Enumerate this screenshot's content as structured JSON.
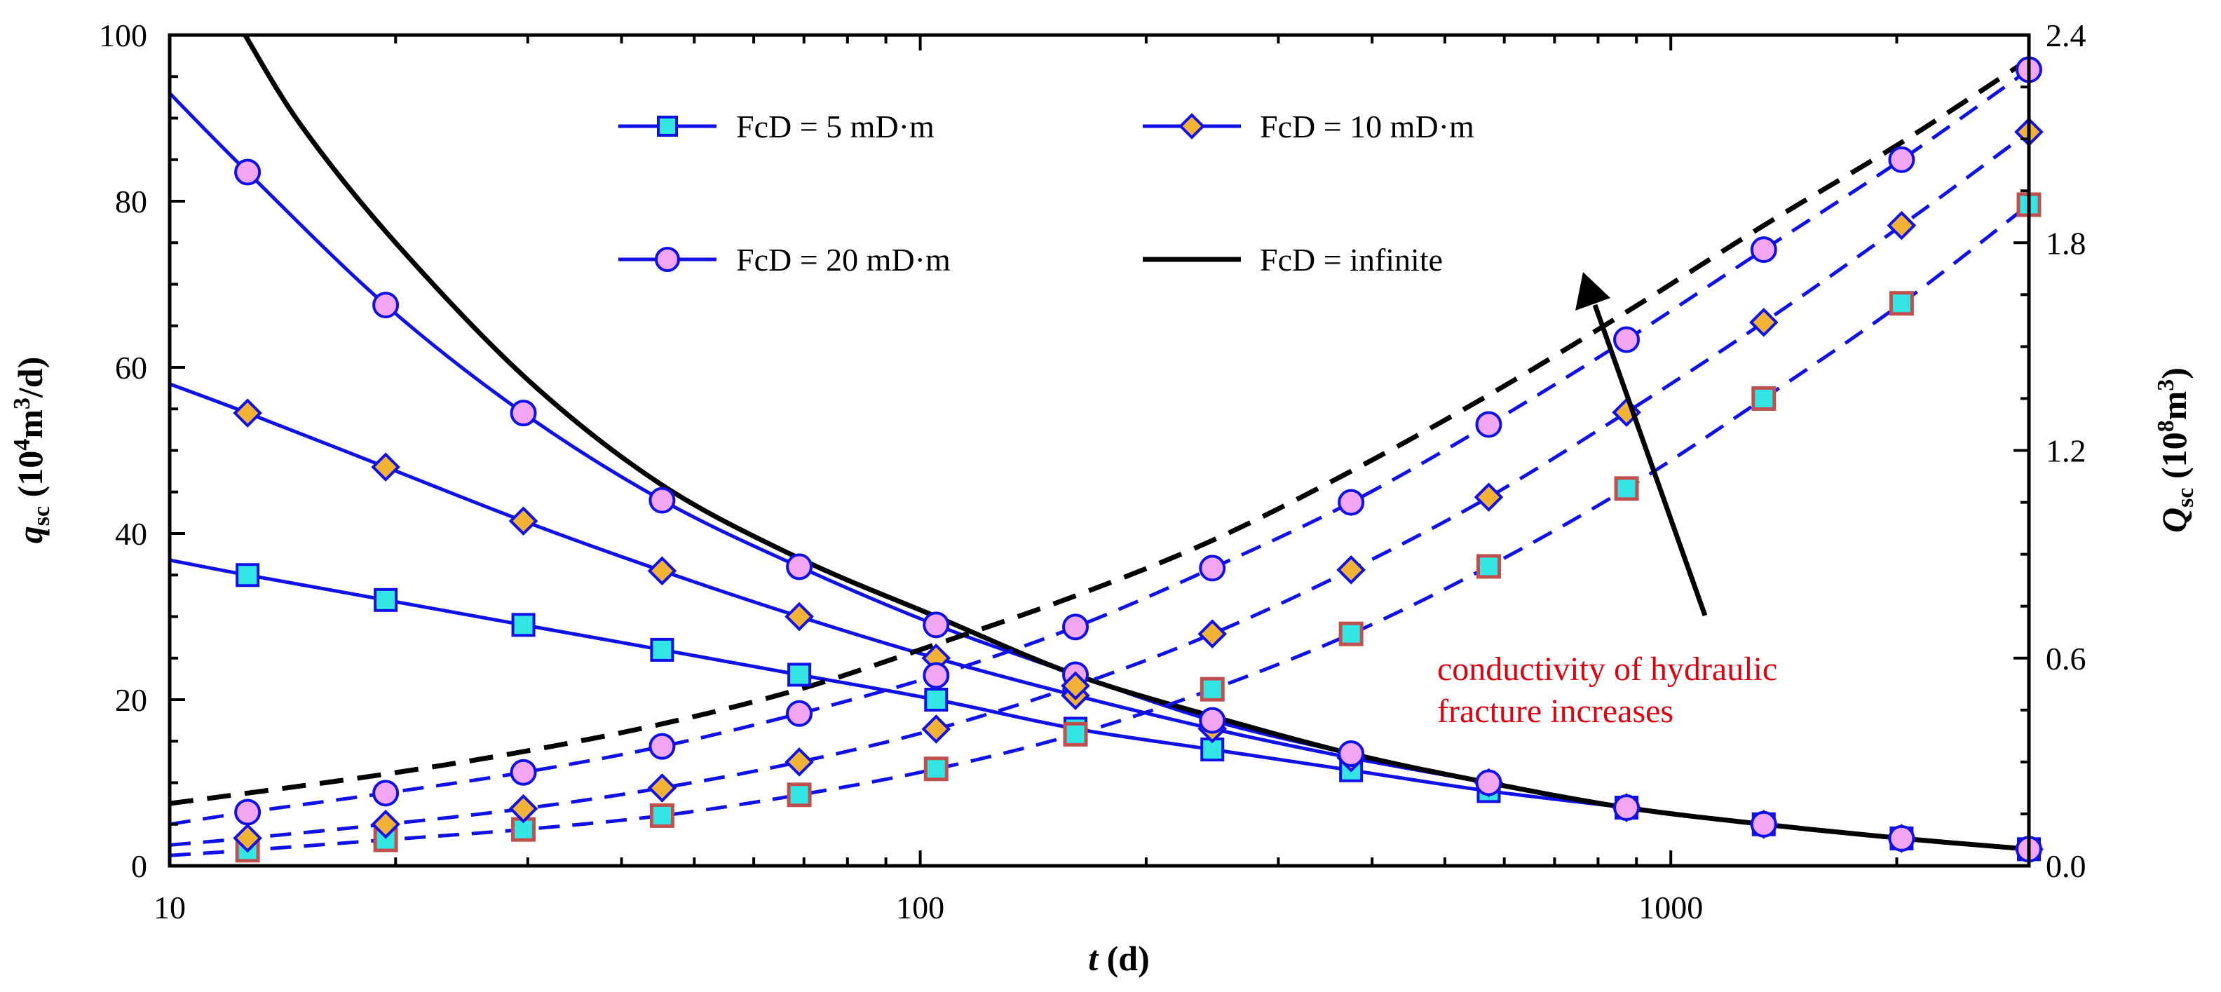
{
  "chart_data": {
    "type": "line",
    "x_scale": "log",
    "xlim": [
      10,
      3000
    ],
    "ylim_left": [
      0,
      100
    ],
    "ylim_right": [
      0,
      2.4
    ],
    "x_ticks": [
      "10",
      "100",
      "1000"
    ],
    "y_left_ticks": [
      "0",
      "20",
      "40",
      "60",
      "80",
      "100"
    ],
    "y_right_ticks": [
      "0.0",
      "0.6",
      "1.2",
      "1.8",
      "2.4"
    ],
    "xlabel": {
      "main": "t",
      "rest": " (d)"
    },
    "ylabel_left": {
      "main": "q",
      "sub": "sc",
      "pre": " (10",
      "sup": "4",
      "mid": "m",
      "sup2": "3",
      "post": "/d)"
    },
    "ylabel_right": {
      "main": "Q",
      "sub": "sc",
      "pre": " (10",
      "sup": "8",
      "mid": "m",
      "sup2": "3",
      "post": ")"
    },
    "grid": false,
    "legend_position": "top-center",
    "colors": {
      "blue": "#1010e8",
      "black": "#000000",
      "square_fill": "#33e6e6",
      "square_edge": "#c0504d",
      "diamond_fill": "#f2b233",
      "circle_fill": "#f2a6f2",
      "annotation": "#e0000f"
    },
    "legend": [
      {
        "label": "FcD = 5 mD·m",
        "marker": "square"
      },
      {
        "label": "FcD = 10 mD·m",
        "marker": "diamond"
      },
      {
        "label": "FcD = 20 mD·m",
        "marker": "circle"
      },
      {
        "label": "FcD = infinite",
        "marker": "none"
      }
    ],
    "marker_x": [
      12.7,
      19.4,
      29.6,
      45.3,
      69,
      105,
      161,
      245,
      375,
      572,
      873,
      1330,
      2030,
      3000
    ],
    "series": [
      {
        "name": "FcD = 5 mD·m",
        "axis": "left",
        "style": "solid",
        "marker": "square",
        "x": [
          10,
          12.7,
          19.4,
          29.6,
          45.3,
          69,
          105,
          161,
          245,
          375,
          572,
          873,
          1330,
          2030,
          3000
        ],
        "y": [
          36.8,
          35.0,
          32.0,
          29.0,
          26.0,
          23.0,
          20.0,
          16.5,
          14.0,
          11.5,
          9.0,
          7.0,
          5.0,
          3.3,
          2.0
        ]
      },
      {
        "name": "FcD = 10 mD·m",
        "axis": "left",
        "style": "solid",
        "marker": "diamond",
        "x": [
          10,
          12.7,
          19.4,
          29.6,
          45.3,
          69,
          105,
          161,
          245,
          375,
          572,
          873,
          1330,
          2030,
          3000
        ],
        "y": [
          58.0,
          54.5,
          48.0,
          41.5,
          35.5,
          30.0,
          25.0,
          20.5,
          16.5,
          13.0,
          10.0,
          7.0,
          5.0,
          3.3,
          2.0
        ]
      },
      {
        "name": "FcD = 20 mD·m",
        "axis": "left",
        "style": "solid",
        "marker": "circle",
        "x": [
          10,
          12.7,
          19.4,
          29.6,
          45.3,
          69,
          105,
          161,
          245,
          375,
          572,
          873,
          1330,
          2030,
          3000
        ],
        "y": [
          93.0,
          83.5,
          67.5,
          54.5,
          44.0,
          36.0,
          29.0,
          23.0,
          17.5,
          13.5,
          10.0,
          7.0,
          5.0,
          3.3,
          2.0
        ]
      },
      {
        "name": "FcD = infinite",
        "axis": "left",
        "style": "solid",
        "marker": "none",
        "x": [
          12.6,
          15,
          20,
          30,
          45,
          69,
          105,
          161,
          245,
          375,
          572,
          873,
          1330,
          2030,
          3000
        ],
        "y": [
          100,
          89,
          75,
          58.5,
          46,
          37,
          30,
          23,
          18,
          13.5,
          10,
          7,
          5,
          3.3,
          2.0
        ]
      },
      {
        "name": "FcD = 5 mD·m",
        "axis": "right",
        "style": "dashed",
        "marker": "square",
        "x": [
          10,
          12.7,
          19.4,
          29.6,
          45.3,
          69,
          105,
          161,
          245,
          375,
          572,
          873,
          1330,
          2030,
          3000
        ],
        "y": [
          0.03,
          0.045,
          0.075,
          0.105,
          0.145,
          0.205,
          0.28,
          0.38,
          0.51,
          0.67,
          0.865,
          1.09,
          1.35,
          1.625,
          1.91
        ]
      },
      {
        "name": "FcD = 10 mD·m",
        "axis": "right",
        "style": "dashed",
        "marker": "diamond",
        "x": [
          10,
          12.7,
          19.4,
          29.6,
          45.3,
          69,
          105,
          161,
          245,
          375,
          572,
          873,
          1330,
          2030,
          3000
        ],
        "y": [
          0.06,
          0.08,
          0.12,
          0.165,
          0.225,
          0.3,
          0.395,
          0.52,
          0.67,
          0.855,
          1.065,
          1.31,
          1.57,
          1.85,
          2.12
        ]
      },
      {
        "name": "FcD = 20 mD·m",
        "axis": "right",
        "style": "dashed",
        "marker": "circle",
        "x": [
          10,
          12.7,
          19.4,
          29.6,
          45.3,
          69,
          105,
          161,
          245,
          375,
          572,
          873,
          1330,
          2030,
          3000
        ],
        "y": [
          0.12,
          0.155,
          0.21,
          0.27,
          0.345,
          0.44,
          0.55,
          0.69,
          0.86,
          1.05,
          1.275,
          1.52,
          1.78,
          2.04,
          2.3
        ]
      },
      {
        "name": "FcD = infinite",
        "axis": "right",
        "style": "dashed",
        "marker": "none",
        "x": [
          10,
          12.7,
          19.4,
          29.6,
          45.3,
          69,
          105,
          161,
          245,
          375,
          572,
          873,
          1330,
          2030,
          3000
        ],
        "y": [
          0.18,
          0.21,
          0.265,
          0.33,
          0.41,
          0.51,
          0.64,
          0.78,
          0.94,
          1.14,
          1.36,
          1.6,
          1.85,
          2.09,
          2.33
        ]
      }
    ],
    "annotation": {
      "lines": [
        "conductivity of hydraulic",
        "fracture increases"
      ],
      "arrow": true
    }
  }
}
